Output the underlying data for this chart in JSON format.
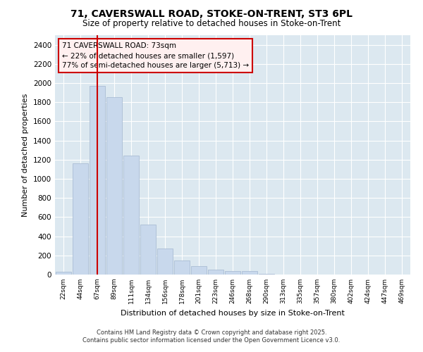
{
  "title_line1": "71, CAVERSWALL ROAD, STOKE-ON-TRENT, ST3 6PL",
  "title_line2": "Size of property relative to detached houses in Stoke-on-Trent",
  "xlabel": "Distribution of detached houses by size in Stoke-on-Trent",
  "ylabel": "Number of detached properties",
  "categories": [
    "22sqm",
    "44sqm",
    "67sqm",
    "89sqm",
    "111sqm",
    "134sqm",
    "156sqm",
    "178sqm",
    "201sqm",
    "223sqm",
    "246sqm",
    "268sqm",
    "290sqm",
    "313sqm",
    "335sqm",
    "357sqm",
    "380sqm",
    "402sqm",
    "424sqm",
    "447sqm",
    "469sqm"
  ],
  "values": [
    30,
    1160,
    1970,
    1855,
    1240,
    520,
    275,
    150,
    85,
    50,
    35,
    40,
    8,
    3,
    2,
    2,
    2,
    2,
    2,
    2,
    2
  ],
  "bar_color": "#c8d8ec",
  "bar_edgecolor": "#aabdd4",
  "vline_x": 2,
  "vline_color": "#cc0000",
  "annotation_text": "71 CAVERSWALL ROAD: 73sqm\n← 22% of detached houses are smaller (1,597)\n77% of semi-detached houses are larger (5,713) →",
  "annotation_box_facecolor": "#fff0f0",
  "annotation_box_edgecolor": "#cc0000",
  "ylim": [
    0,
    2500
  ],
  "yticks": [
    0,
    200,
    400,
    600,
    800,
    1000,
    1200,
    1400,
    1600,
    1800,
    2000,
    2200,
    2400
  ],
  "background_color": "#dce8f0",
  "grid_color": "#ffffff",
  "fig_background": "#ffffff",
  "footer_line1": "Contains HM Land Registry data © Crown copyright and database right 2025.",
  "footer_line2": "Contains public sector information licensed under the Open Government Licence v3.0."
}
